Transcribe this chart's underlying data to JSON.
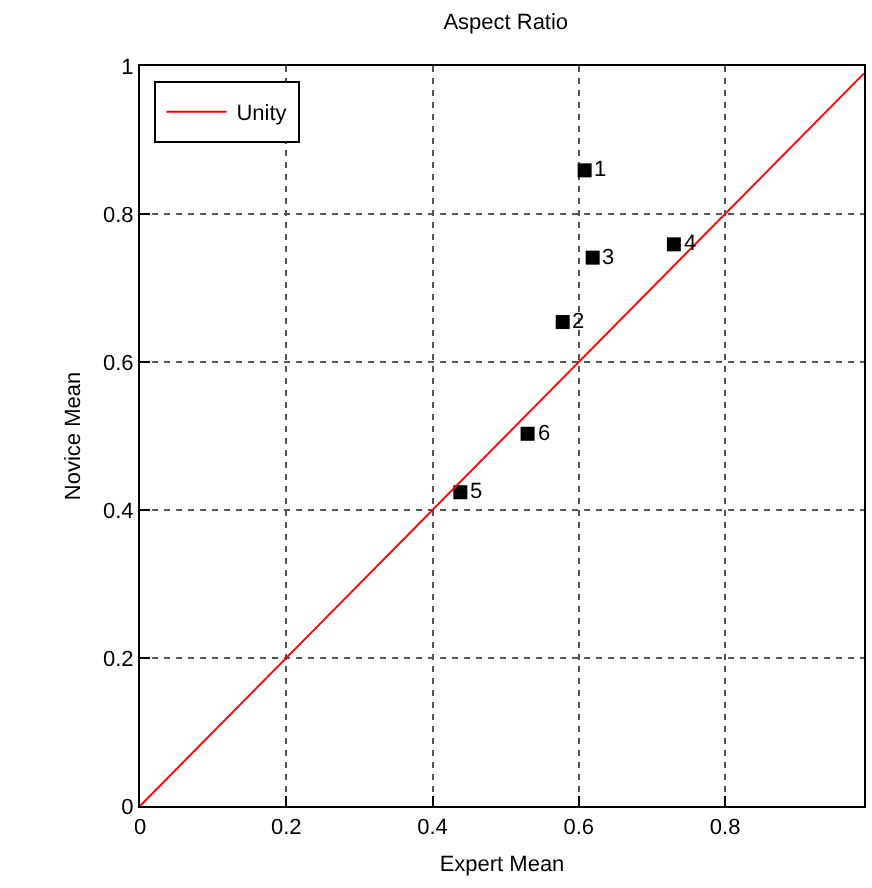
{
  "chart_data": {
    "type": "scatter",
    "title": "Aspect Ratio",
    "xlabel": "Expert Mean",
    "ylabel": "Novice Mean",
    "xlim": [
      0,
      0.99
    ],
    "ylim": [
      0,
      1
    ],
    "xticks": [
      0,
      0.2,
      0.4,
      0.6,
      0.8
    ],
    "yticks": [
      0,
      0.2,
      0.4,
      0.6,
      0.8,
      1
    ],
    "grid": true,
    "legend": "top left",
    "series": [
      {
        "color": "#000000",
        "marker": "square",
        "x": [
          0.608,
          0.578,
          0.619,
          0.73,
          0.438,
          0.53
        ],
        "values": [
          0.859,
          0.654,
          0.741,
          0.759,
          0.424,
          0.503
        ]
      },
      {
        "type": "line",
        "name": "Unity",
        "color": "#ff0000",
        "line_style": "solid",
        "marker": "none",
        "x": [
          0,
          0.99
        ],
        "values": [
          0,
          0.99
        ]
      }
    ],
    "annotations": [
      {
        "text": "1",
        "x": 0.608,
        "y": 0.859
      },
      {
        "text": "2",
        "x": 0.578,
        "y": 0.654
      },
      {
        "text": "3",
        "x": 0.619,
        "y": 0.741
      },
      {
        "text": "4",
        "x": 0.73,
        "y": 0.759
      },
      {
        "text": "5",
        "x": 0.438,
        "y": 0.424
      },
      {
        "text": "6",
        "x": 0.53,
        "y": 0.503
      }
    ]
  }
}
